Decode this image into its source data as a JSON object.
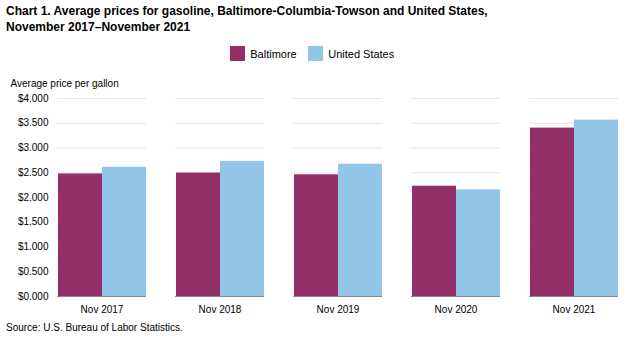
{
  "chart_data": {
    "type": "bar",
    "title": "Chart 1. Average prices for gasoline, Baltimore-Columbia-Towson  and United States,\nNovember 2017–November 2021",
    "ylabel": "Average price per gallon",
    "caption": "Source: U.S. Bureau of Labor Statistics.",
    "categories": [
      "Nov 2017",
      "Nov 2018",
      "Nov 2019",
      "Nov 2020",
      "Nov 2021"
    ],
    "series": [
      {
        "name": "Baltimore",
        "color": "#943068",
        "values": [
          2.476,
          2.494,
          2.459,
          2.228,
          3.402
        ]
      },
      {
        "name": "United States",
        "color": "#92C5E8",
        "values": [
          2.61,
          2.73,
          2.672,
          2.155,
          3.564
        ]
      }
    ],
    "ylim": [
      0,
      4.0
    ],
    "yticks": [
      {
        "value": 0.0,
        "label": "$0.000"
      },
      {
        "value": 0.5,
        "label": "$0.500"
      },
      {
        "value": 1.0,
        "label": "$1.000"
      },
      {
        "value": 1.5,
        "label": "$1.500"
      },
      {
        "value": 2.0,
        "label": "$2.000"
      },
      {
        "value": 2.5,
        "label": "$2.500"
      },
      {
        "value": 3.0,
        "label": "$3.000"
      },
      {
        "value": 3.5,
        "label": "$3.500"
      },
      {
        "value": 4.0,
        "label": "$4.000"
      }
    ],
    "grid": true,
    "legend": "top"
  }
}
